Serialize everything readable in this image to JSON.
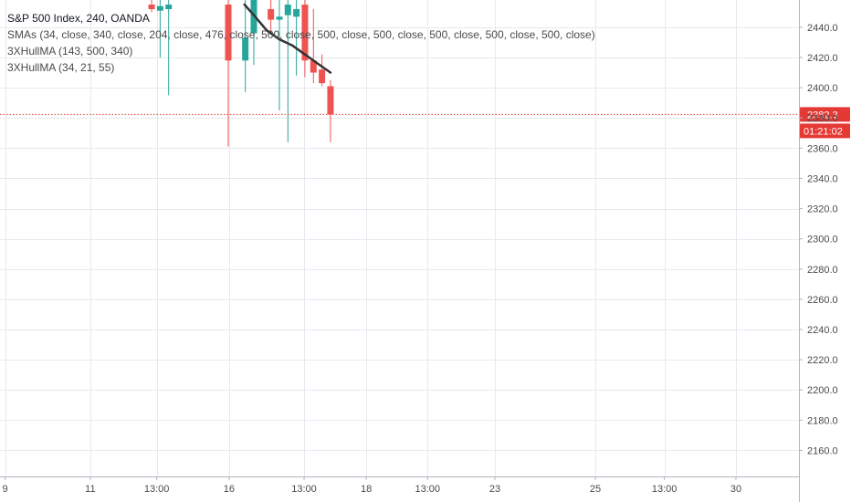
{
  "legend": {
    "title": "S&P 500 Index, 240, OANDA",
    "sma": "SMAs (34, close, 340, close, 204, close, 476, close, 500, close, 500, close, 500, close, 500, close, 500, close, 500, close)",
    "hull1": "3XHullMA (143, 500, 340)",
    "hull2": "3XHullMA (34, 21, 55)"
  },
  "colors": {
    "up": "#26a69a",
    "down": "#ef5350",
    "hull": "#333333",
    "grid": "#e6e9ef",
    "price_line": "#e53935"
  },
  "price_tag": {
    "price": "2382.3",
    "countdown": "01:21:02"
  },
  "chart_data": {
    "type": "candlestick",
    "title": "",
    "ylim": [
      2150,
      2452
    ],
    "y_ticks": [
      2160,
      2180,
      2200,
      2220,
      2240,
      2260,
      2280,
      2300,
      2320,
      2340,
      2360,
      2380,
      2400,
      2420,
      2440
    ],
    "y_tick_labels": [
      "2160.0",
      "2180.0",
      "2200.0",
      "2220.0",
      "2240.0",
      "2260.0",
      "2280.0",
      "2300.0",
      "2320.0",
      "2340.0",
      "2360.0",
      "2380.0",
      "2400.0",
      "2420.0",
      "2440.0"
    ],
    "x_labels": [
      "9",
      "11",
      "13:00",
      "16",
      "13:00",
      "18",
      "13:00",
      "23",
      "25",
      "13:00",
      "30"
    ],
    "x_index": [
      -31.2,
      -21.2,
      -13.4,
      -4.9,
      3.9,
      11.2,
      18.4,
      26.3,
      38.1,
      46.2,
      54.6
    ],
    "x_range": [
      -31.8,
      62
    ],
    "grid": true,
    "candles": [
      {
        "i": -14.0,
        "o": 2455,
        "h": 2460,
        "l": 2450,
        "c": 2452
      },
      {
        "i": -13.0,
        "o": 2451,
        "h": 2460,
        "l": 2420,
        "c": 2454
      },
      {
        "i": -12.0,
        "o": 2452,
        "h": 2460,
        "l": 2395,
        "c": 2455
      },
      {
        "i": -5.0,
        "o": 2455,
        "h": 2460,
        "l": 2361,
        "c": 2418
      },
      {
        "i": -3.0,
        "o": 2418,
        "h": 2460,
        "l": 2397,
        "c": 2433
      },
      {
        "i": -2.0,
        "o": 2436,
        "h": 2460,
        "l": 2415,
        "c": 2460
      },
      {
        "i": 0.0,
        "o": 2452,
        "h": 2460,
        "l": 2436,
        "c": 2445
      },
      {
        "i": 1.0,
        "o": 2445,
        "h": 2460,
        "l": 2385,
        "c": 2447
      },
      {
        "i": 2.0,
        "o": 2448,
        "h": 2460,
        "l": 2364,
        "c": 2455
      },
      {
        "i": 3.0,
        "o": 2447,
        "h": 2460,
        "l": 2408,
        "c": 2452
      },
      {
        "i": 4.0,
        "o": 2455,
        "h": 2460,
        "l": 2407,
        "c": 2418
      },
      {
        "i": 5.0,
        "o": 2418,
        "h": 2452,
        "l": 2403,
        "c": 2410
      },
      {
        "i": 6.0,
        "o": 2412,
        "h": 2422,
        "l": 2401,
        "c": 2403
      },
      {
        "i": 7.0,
        "o": 2401,
        "h": 2405,
        "l": 2364,
        "c": 2382.3
      }
    ],
    "hull_line": {
      "x": [
        -3.1,
        -2.0,
        -0.5,
        1.0,
        2.5,
        4.0,
        5.5,
        7.0
      ],
      "y": [
        2455,
        2448,
        2438,
        2432,
        2428,
        2422,
        2416,
        2410
      ]
    },
    "current_price": 2382.3
  }
}
